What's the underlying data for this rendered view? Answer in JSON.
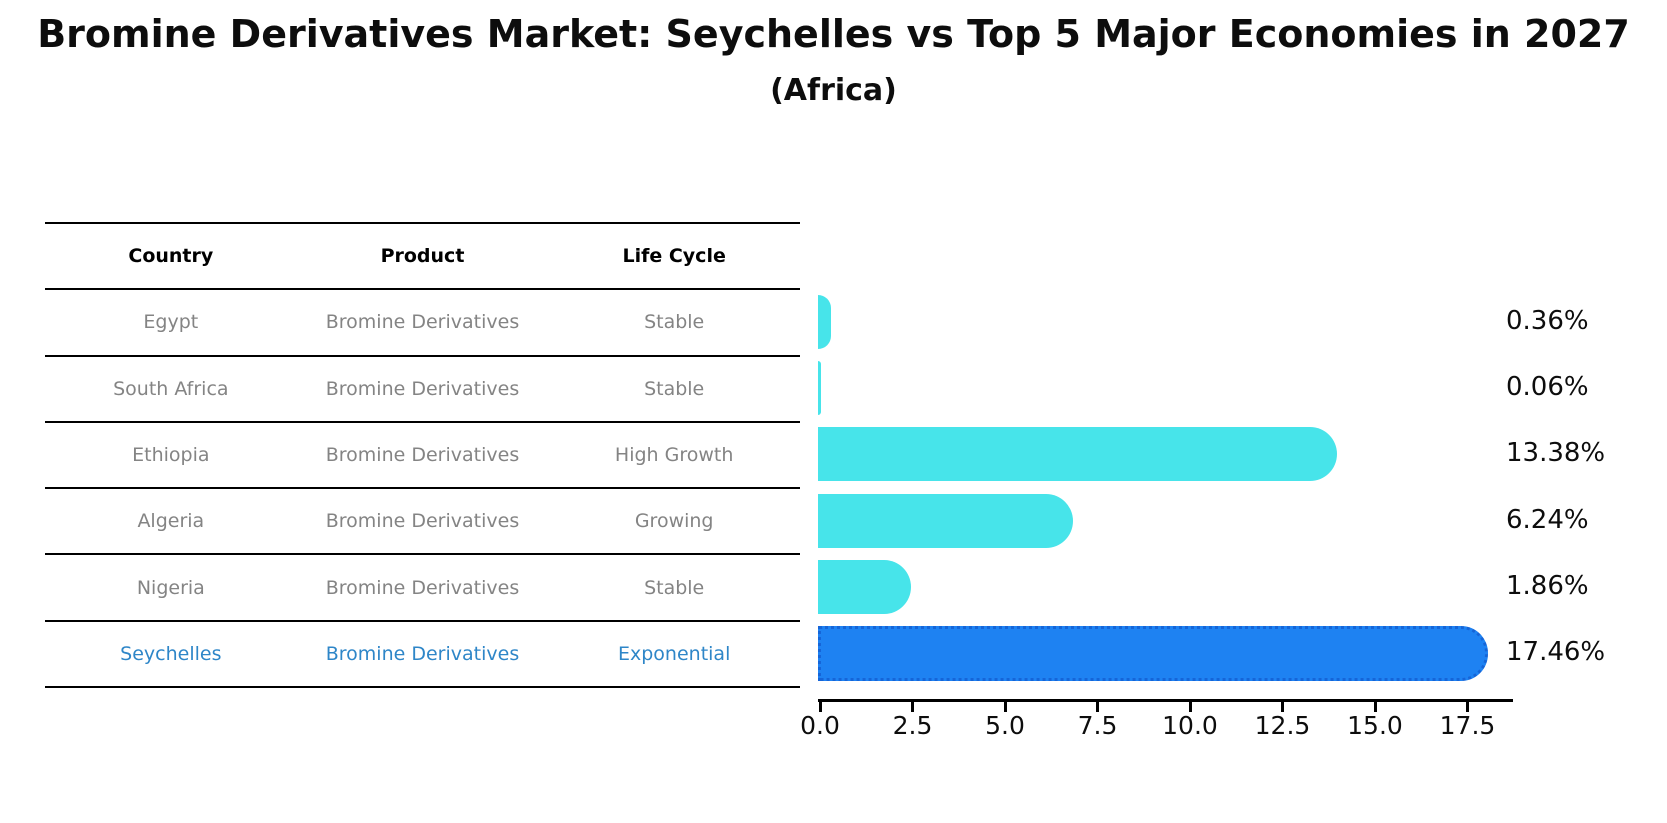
{
  "title": "Bromine Derivatives Market: Seychelles vs Top 5 Major Economies in 2027",
  "subtitle": "(Africa)",
  "table": {
    "headers": [
      "Country",
      "Product",
      "Life Cycle"
    ],
    "rows": [
      {
        "country": "Egypt",
        "product": "Bromine Derivatives",
        "life_cycle": "Stable",
        "highlight": false
      },
      {
        "country": "South Africa",
        "product": "Bromine Derivatives",
        "life_cycle": "Stable",
        "highlight": false
      },
      {
        "country": "Ethiopia",
        "product": "Bromine Derivatives",
        "life_cycle": "High Growth",
        "highlight": false
      },
      {
        "country": "Algeria",
        "product": "Bromine Derivatives",
        "life_cycle": "Growing",
        "highlight": false
      },
      {
        "country": "Nigeria",
        "product": "Bromine Derivatives",
        "life_cycle": "Stable",
        "highlight": true
      }
    ]
  },
  "chart_data": {
    "type": "bar",
    "orientation": "horizontal",
    "title": "Bromine Derivatives Market: Seychelles vs Top 5 Major Economies in 2027",
    "subtitle": "(Africa)",
    "categories": [
      "Egypt",
      "South Africa",
      "Ethiopia",
      "Algeria",
      "Nigeria",
      "Seychelles"
    ],
    "values": [
      0.36,
      0.06,
      13.38,
      6.24,
      1.86,
      17.46
    ],
    "value_labels": [
      "0.36%",
      "0.06%",
      "13.38%",
      "6.24%",
      "1.86%",
      "17.46%"
    ],
    "x_tick_labels": [
      "0.0",
      "2.5",
      "5.0",
      "7.5",
      "10.0",
      "12.5",
      "15.0",
      "17.5"
    ],
    "x_tick_values": [
      0,
      2.5,
      5,
      7.5,
      10,
      12.5,
      15,
      17.5
    ],
    "xlim": [
      0,
      18.75
    ],
    "grid": false,
    "legend": false,
    "highlight_index": 5,
    "colors": {
      "bar": "#47e4ea",
      "highlight_bar": "#1e82f2",
      "highlight_border": "#1565d8",
      "table_text": "#848484",
      "highlight_text": "#2e86c8",
      "axis": "#000000",
      "label_text": "#0d0d0d"
    }
  },
  "note_highlight_row": {
    "country": "Seychelles",
    "product": "Bromine Derivatives",
    "life_cycle": "Exponential",
    "highlight": true
  }
}
